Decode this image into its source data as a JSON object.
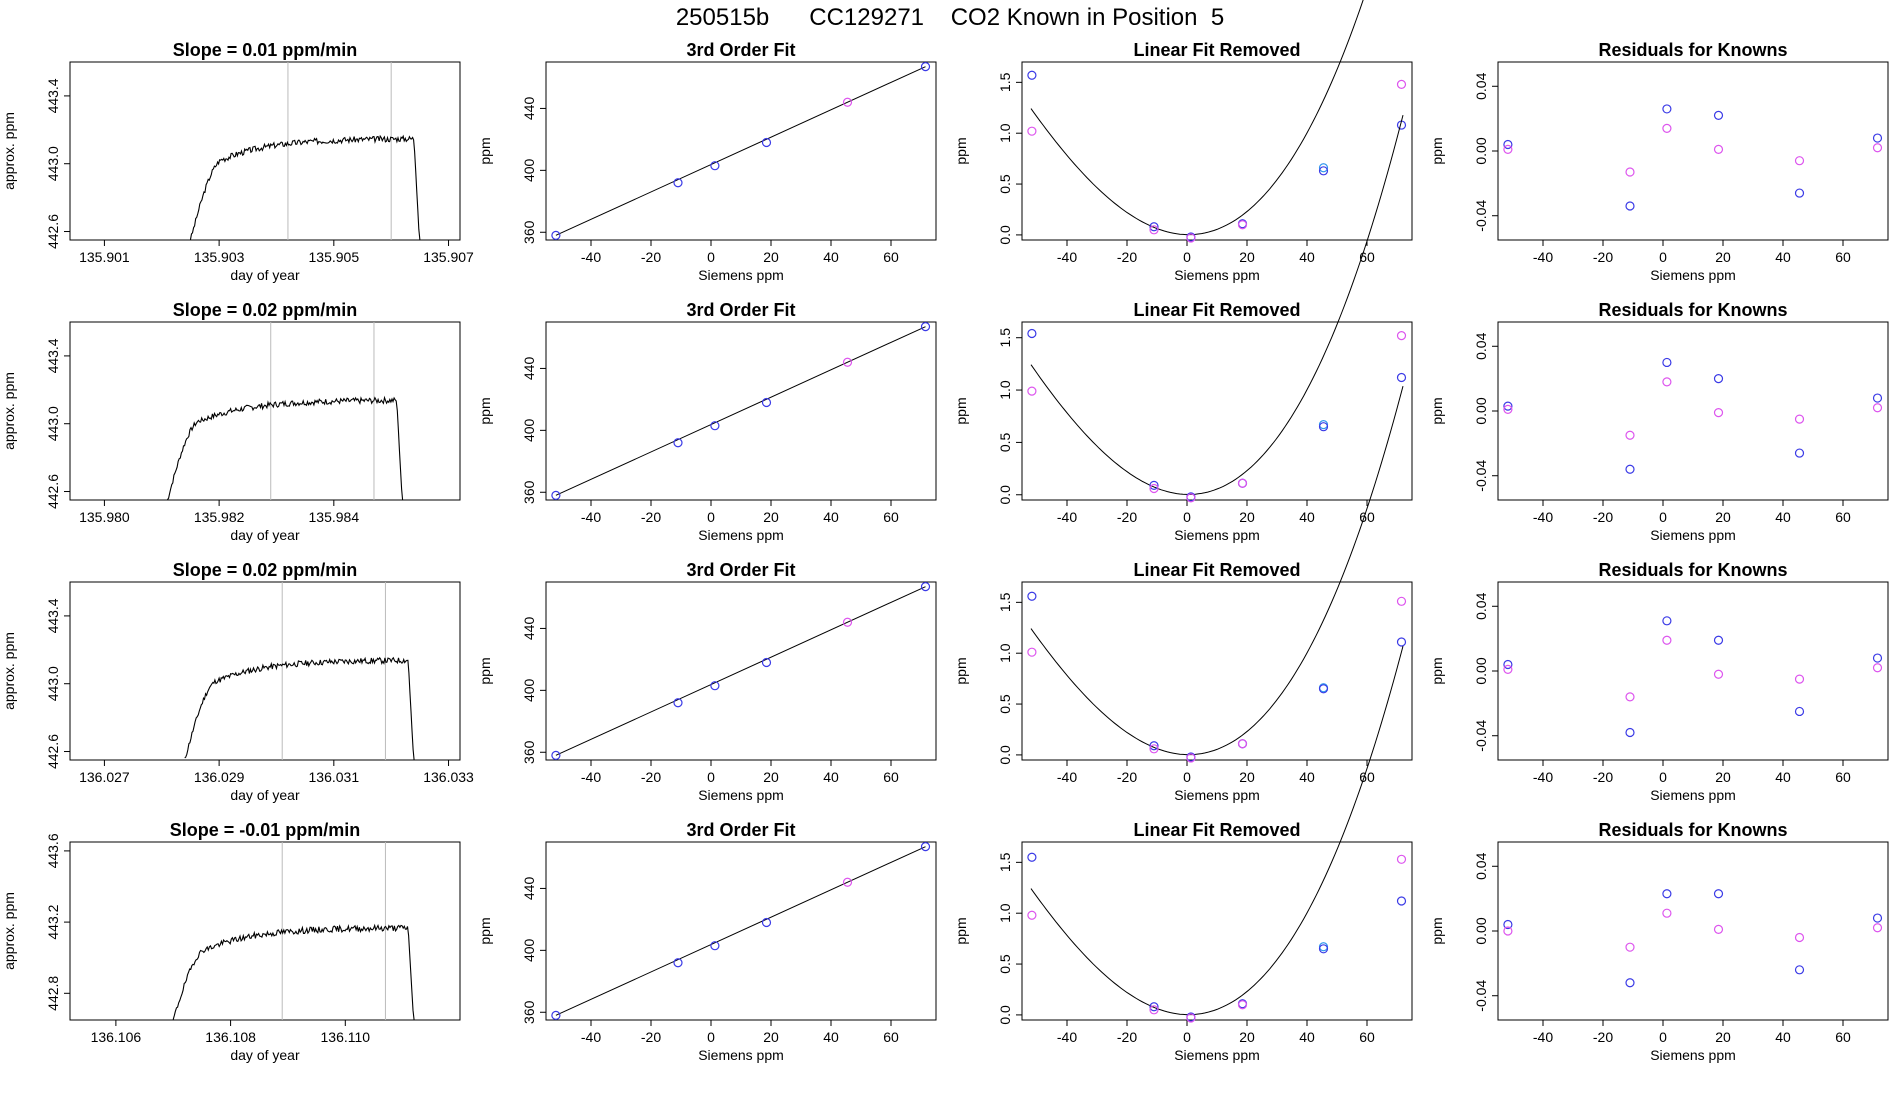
{
  "page": {
    "title": "250515b      CC129271    CO2 Known in Position  5"
  },
  "colors": {
    "blue": "#3a3ae6",
    "violet": "#dd55ee",
    "lightblue": "#3399ee",
    "red": "#ee4444",
    "marker_line": "#bbbbbb",
    "curve": "#000000"
  },
  "chart_data": [
    {
      "type": "line",
      "panel": "row1-timeseries",
      "title": "Slope =  0.01  ppm/min",
      "xlabel": "day of year",
      "ylabel": "approx. ppm",
      "xlim": [
        135.9004,
        135.9072
      ],
      "ylim": [
        442.55,
        443.6
      ],
      "xticks": [
        135.901,
        135.903,
        135.905,
        135.907
      ],
      "xtick_labels": [
        "135.901",
        "135.903",
        "135.905",
        "135.907"
      ],
      "yticks": [
        442.6,
        443.0,
        443.4
      ],
      "ytick_labels": [
        "442.6",
        "443.0",
        "443.4"
      ],
      "markers": [
        135.9042,
        135.906
      ],
      "rise": [
        135.9025,
        135.9031
      ],
      "fall": [
        135.9064,
        135.9065
      ],
      "plateau": 443.13,
      "seed": 3,
      "grid": false
    },
    {
      "type": "line",
      "panel": "row1-fit",
      "title": "3rd Order Fit",
      "xlabel": "Siemens ppm",
      "ylabel": "ppm",
      "xlim": [
        -55,
        75
      ],
      "ylim": [
        355,
        470
      ],
      "xticks": [
        -40,
        -20,
        0,
        20,
        40,
        60
      ],
      "xtick_labels": [
        "-40",
        "-20",
        "0",
        "20",
        "40",
        "60"
      ],
      "yticks": [
        360,
        400,
        440
      ],
      "ytick_labels": [
        "360",
        "400",
        "440"
      ],
      "points": {
        "x": [
          -51.7,
          -11.0,
          1.3,
          18.5,
          45.5,
          71.5
        ],
        "y": [
          358,
          392,
          403,
          418,
          444,
          467
        ],
        "colors": [
          "blue",
          "blue",
          "blue",
          "blue",
          "violet",
          "blue"
        ]
      },
      "curve": [
        [
          -51.7,
          358
        ],
        [
          71.5,
          467
        ]
      ],
      "grid": false
    },
    {
      "type": "scatter",
      "panel": "row1-linfit",
      "title": "Linear Fit Removed",
      "xlabel": "Siemens ppm",
      "ylabel": "ppm",
      "xlim": [
        -55,
        75
      ],
      "ylim": [
        -0.05,
        1.7
      ],
      "xticks": [
        -40,
        -20,
        0,
        20,
        40,
        60
      ],
      "xtick_labels": [
        "-40",
        "-20",
        "0",
        "20",
        "40",
        "60"
      ],
      "yticks": [
        0.0,
        0.5,
        1.0,
        1.5
      ],
      "ytick_labels": [
        "0.0",
        "0.5",
        "1.0",
        "1.5"
      ],
      "points": {
        "x": [
          -51.7,
          -51.7,
          -11.0,
          -11.0,
          1.3,
          1.3,
          18.5,
          18.5,
          45.5,
          45.5,
          71.5,
          71.5
        ],
        "y": [
          1.57,
          1.02,
          0.08,
          0.05,
          -0.02,
          -0.03,
          0.11,
          0.1,
          0.66,
          0.63,
          1.08,
          1.48
        ],
        "colors": [
          "blue",
          "violet",
          "blue",
          "violet",
          "blue",
          "violet",
          "blue",
          "violet",
          "lightblue",
          "blue",
          "blue",
          "violet"
        ]
      },
      "poly": [
        0.0029,
        -0.0006,
        0.000556,
        2.1e-06
      ],
      "grid": false
    },
    {
      "type": "scatter",
      "panel": "row1-resid",
      "title": "Residuals for Knowns",
      "xlabel": "Siemens ppm",
      "ylabel": "ppm",
      "xlim": [
        -55,
        75
      ],
      "ylim": [
        -0.055,
        0.055
      ],
      "xticks": [
        -40,
        -20,
        0,
        20,
        40,
        60
      ],
      "xtick_labels": [
        "-40",
        "-20",
        "0",
        "20",
        "40",
        "60"
      ],
      "yticks": [
        -0.04,
        0.0,
        0.04
      ],
      "ytick_labels": [
        "-0.04",
        "0.00",
        "0.04"
      ],
      "points": {
        "x": [
          -51.7,
          -51.7,
          -11.0,
          -11.0,
          1.3,
          1.3,
          18.5,
          18.5,
          45.5,
          45.5,
          71.5,
          71.5
        ],
        "y": [
          0.004,
          0.001,
          -0.034,
          -0.013,
          0.026,
          0.014,
          0.022,
          0.001,
          -0.026,
          -0.006,
          0.008,
          0.002
        ],
        "colors": [
          "blue",
          "violet",
          "blue",
          "violet",
          "blue",
          "violet",
          "blue",
          "violet",
          "blue",
          "violet",
          "blue",
          "violet"
        ]
      },
      "grid": false
    },
    {
      "type": "line",
      "panel": "row2-timeseries",
      "title": "Slope =  0.02  ppm/min",
      "xlabel": "day of year",
      "ylabel": "approx. ppm",
      "xlim": [
        135.9794,
        135.9862
      ],
      "ylim": [
        442.55,
        443.6
      ],
      "xticks": [
        135.98,
        135.982,
        135.984
      ],
      "xtick_labels": [
        "135.980",
        "135.982",
        "135.984"
      ],
      "yticks": [
        442.6,
        443.0,
        443.4
      ],
      "ytick_labels": [
        "442.6",
        "443.0",
        "443.4"
      ],
      "markers": [
        135.9829,
        135.9847
      ],
      "rise": [
        135.9811,
        135.9817
      ],
      "fall": [
        135.9851,
        135.9852
      ],
      "plateau": 443.12,
      "seed": 7,
      "grid": false
    },
    {
      "type": "line",
      "panel": "row2-fit",
      "title": "3rd Order Fit",
      "xlabel": "Siemens ppm",
      "ylabel": "ppm",
      "xlim": [
        -55,
        75
      ],
      "ylim": [
        355,
        470
      ],
      "xticks": [
        -40,
        -20,
        0,
        20,
        40,
        60
      ],
      "xtick_labels": [
        "-40",
        "-20",
        "0",
        "20",
        "40",
        "60"
      ],
      "yticks": [
        360,
        400,
        440
      ],
      "ytick_labels": [
        "360",
        "400",
        "440"
      ],
      "points": {
        "x": [
          -51.7,
          -11.0,
          1.3,
          18.5,
          45.5,
          71.5
        ],
        "y": [
          358,
          392,
          403,
          418,
          444,
          467
        ],
        "colors": [
          "blue",
          "blue",
          "blue",
          "blue",
          "violet",
          "blue"
        ]
      },
      "curve": [
        [
          -51.7,
          358
        ],
        [
          71.5,
          467
        ]
      ],
      "grid": false
    },
    {
      "type": "scatter",
      "panel": "row2-linfit",
      "title": "Linear Fit Removed",
      "xlabel": "Siemens ppm",
      "ylabel": "ppm",
      "xlim": [
        -55,
        75
      ],
      "ylim": [
        -0.05,
        1.65
      ],
      "xticks": [
        -40,
        -20,
        0,
        20,
        40,
        60
      ],
      "xtick_labels": [
        "-40",
        "-20",
        "0",
        "20",
        "40",
        "60"
      ],
      "yticks": [
        0.0,
        0.5,
        1.0,
        1.5
      ],
      "ytick_labels": [
        "0.0",
        "0.5",
        "1.0",
        "1.5"
      ],
      "points": {
        "x": [
          -51.7,
          -51.7,
          -11.0,
          -11.0,
          1.3,
          1.3,
          18.5,
          18.5,
          45.5,
          45.5,
          71.5,
          71.5
        ],
        "y": [
          1.54,
          0.99,
          0.09,
          0.06,
          -0.02,
          -0.03,
          0.11,
          0.11,
          0.67,
          0.65,
          1.12,
          1.52
        ],
        "colors": [
          "blue",
          "violet",
          "blue",
          "violet",
          "blue",
          "violet",
          "blue",
          "violet",
          "lightblue",
          "blue",
          "blue",
          "violet"
        ]
      },
      "poly": [
        0.0029,
        -0.0006,
        0.000556,
        2.1e-06
      ],
      "grid": false
    },
    {
      "type": "scatter",
      "panel": "row2-resid",
      "title": "Residuals for Knowns",
      "xlabel": "Siemens ppm",
      "ylabel": "ppm",
      "xlim": [
        -55,
        75
      ],
      "ylim": [
        -0.055,
        0.055
      ],
      "xticks": [
        -40,
        -20,
        0,
        20,
        40,
        60
      ],
      "xtick_labels": [
        "-40",
        "-20",
        "0",
        "20",
        "40",
        "60"
      ],
      "yticks": [
        -0.04,
        0.0,
        0.04
      ],
      "ytick_labels": [
        "-0.04",
        "0.00",
        "0.04"
      ],
      "points": {
        "x": [
          -51.7,
          -51.7,
          -11.0,
          -11.0,
          1.3,
          1.3,
          18.5,
          18.5,
          45.5,
          45.5,
          71.5,
          71.5
        ],
        "y": [
          0.003,
          0.001,
          -0.036,
          -0.015,
          0.03,
          0.018,
          0.02,
          -0.001,
          -0.026,
          -0.005,
          0.008,
          0.002
        ],
        "colors": [
          "blue",
          "violet",
          "blue",
          "violet",
          "blue",
          "violet",
          "blue",
          "violet",
          "blue",
          "violet",
          "blue",
          "violet"
        ]
      },
      "grid": false
    },
    {
      "type": "line",
      "panel": "row3-timeseries",
      "title": "Slope =  0.02  ppm/min",
      "xlabel": "day of year",
      "ylabel": "approx. ppm",
      "xlim": [
        136.0264,
        136.0332
      ],
      "ylim": [
        442.55,
        443.6
      ],
      "xticks": [
        136.027,
        136.029,
        136.031,
        136.033
      ],
      "xtick_labels": [
        "136.027",
        "136.029",
        "136.031",
        "136.033"
      ],
      "yticks": [
        442.6,
        443.0,
        443.4
      ],
      "ytick_labels": [
        "442.6",
        "443.0",
        "443.4"
      ],
      "markers": [
        136.0301,
        136.0319
      ],
      "rise": [
        136.0284,
        136.029
      ],
      "fall": [
        136.0323,
        136.0324
      ],
      "plateau": 443.12,
      "seed": 11,
      "grid": false
    },
    {
      "type": "line",
      "panel": "row3-fit",
      "title": "3rd Order Fit",
      "xlabel": "Siemens ppm",
      "ylabel": "ppm",
      "xlim": [
        -55,
        75
      ],
      "ylim": [
        355,
        470
      ],
      "xticks": [
        -40,
        -20,
        0,
        20,
        40,
        60
      ],
      "xtick_labels": [
        "-40",
        "-20",
        "0",
        "20",
        "40",
        "60"
      ],
      "yticks": [
        360,
        400,
        440
      ],
      "ytick_labels": [
        "360",
        "400",
        "440"
      ],
      "points": {
        "x": [
          -51.7,
          -11.0,
          1.3,
          18.5,
          45.5,
          71.5
        ],
        "y": [
          358,
          392,
          403,
          418,
          444,
          467
        ],
        "colors": [
          "blue",
          "blue",
          "blue",
          "blue",
          "violet",
          "blue"
        ]
      },
      "curve": [
        [
          -51.7,
          358
        ],
        [
          71.5,
          467
        ]
      ],
      "grid": false
    },
    {
      "type": "scatter",
      "panel": "row3-linfit",
      "title": "Linear Fit Removed",
      "xlabel": "Siemens ppm",
      "ylabel": "ppm",
      "xlim": [
        -55,
        75
      ],
      "ylim": [
        -0.05,
        1.7
      ],
      "xticks": [
        -40,
        -20,
        0,
        20,
        40,
        60
      ],
      "xtick_labels": [
        "-40",
        "-20",
        "0",
        "20",
        "40",
        "60"
      ],
      "yticks": [
        0.0,
        0.5,
        1.0,
        1.5
      ],
      "ytick_labels": [
        "0.0",
        "0.5",
        "1.0",
        "1.5"
      ],
      "points": {
        "x": [
          -51.7,
          -51.7,
          -11.0,
          -11.0,
          1.3,
          1.3,
          18.5,
          18.5,
          45.5,
          45.5,
          71.5,
          71.5
        ],
        "y": [
          1.56,
          1.01,
          0.09,
          0.06,
          -0.02,
          -0.03,
          0.11,
          0.11,
          0.66,
          0.65,
          1.11,
          1.51
        ],
        "colors": [
          "blue",
          "violet",
          "blue",
          "violet",
          "blue",
          "violet",
          "blue",
          "violet",
          "lightblue",
          "blue",
          "blue",
          "violet"
        ]
      },
      "poly": [
        0.0029,
        -0.0006,
        0.000556,
        2.1e-06
      ],
      "grid": false
    },
    {
      "type": "scatter",
      "panel": "row3-resid",
      "title": "Residuals for Knowns",
      "xlabel": "Siemens ppm",
      "ylabel": "ppm",
      "xlim": [
        -55,
        75
      ],
      "ylim": [
        -0.055,
        0.055
      ],
      "xticks": [
        -40,
        -20,
        0,
        20,
        40,
        60
      ],
      "xtick_labels": [
        "-40",
        "-20",
        "0",
        "20",
        "40",
        "60"
      ],
      "yticks": [
        -0.04,
        0.0,
        0.04
      ],
      "ytick_labels": [
        "-0.04",
        "0.00",
        "0.04"
      ],
      "points": {
        "x": [
          -51.7,
          -51.7,
          -11.0,
          -11.0,
          1.3,
          1.3,
          18.5,
          18.5,
          45.5,
          45.5,
          71.5,
          71.5
        ],
        "y": [
          0.004,
          0.001,
          -0.038,
          -0.016,
          0.031,
          0.019,
          0.019,
          -0.002,
          -0.025,
          -0.005,
          0.008,
          0.002
        ],
        "colors": [
          "blue",
          "violet",
          "blue",
          "violet",
          "blue",
          "violet",
          "blue",
          "violet",
          "blue",
          "violet",
          "blue",
          "violet"
        ]
      },
      "grid": false
    },
    {
      "type": "line",
      "panel": "row4-timeseries",
      "title": "Slope =  -0.01  ppm/min",
      "xlabel": "day of year",
      "ylabel": "approx. ppm",
      "xlim": [
        136.1052,
        136.112
      ],
      "ylim": [
        442.65,
        443.65
      ],
      "xticks": [
        136.106,
        136.108,
        136.11
      ],
      "xtick_labels": [
        "136.106",
        "136.108",
        "136.110"
      ],
      "yticks": [
        442.8,
        443.2,
        443.6
      ],
      "ytick_labels": [
        "442.8",
        "443.2",
        "443.6"
      ],
      "markers": [
        136.1089,
        136.1107
      ],
      "rise": [
        136.107,
        136.1076
      ],
      "fall": [
        136.1111,
        136.1112
      ],
      "plateau": 443.15,
      "seed": 19,
      "grid": false
    },
    {
      "type": "line",
      "panel": "row4-fit",
      "title": "3rd Order Fit",
      "xlabel": "Siemens ppm",
      "ylabel": "ppm",
      "xlim": [
        -55,
        75
      ],
      "ylim": [
        355,
        470
      ],
      "xticks": [
        -40,
        -20,
        0,
        20,
        40,
        60
      ],
      "xtick_labels": [
        "-40",
        "-20",
        "0",
        "20",
        "40",
        "60"
      ],
      "yticks": [
        360,
        400,
        440
      ],
      "ytick_labels": [
        "360",
        "400",
        "440"
      ],
      "points": {
        "x": [
          -51.7,
          -11.0,
          1.3,
          18.5,
          45.5,
          71.5
        ],
        "y": [
          358,
          392,
          403,
          418,
          444,
          467
        ],
        "colors": [
          "blue",
          "blue",
          "blue",
          "blue",
          "violet",
          "blue"
        ]
      },
      "curve": [
        [
          -51.7,
          358
        ],
        [
          71.5,
          467
        ]
      ],
      "grid": false
    },
    {
      "type": "scatter",
      "panel": "row4-linfit",
      "title": "Linear Fit Removed",
      "xlabel": "Siemens ppm",
      "ylabel": "ppm",
      "xlim": [
        -55,
        75
      ],
      "ylim": [
        -0.05,
        1.7
      ],
      "xticks": [
        -40,
        -20,
        0,
        20,
        40,
        60
      ],
      "xtick_labels": [
        "-40",
        "-20",
        "0",
        "20",
        "40",
        "60"
      ],
      "yticks": [
        0.0,
        0.5,
        1.0,
        1.5
      ],
      "ytick_labels": [
        "0.0",
        "0.5",
        "1.0",
        "1.5"
      ],
      "points": {
        "x": [
          -51.7,
          -51.7,
          -11.0,
          -11.0,
          1.3,
          1.3,
          18.5,
          18.5,
          45.5,
          45.5,
          71.5,
          71.5
        ],
        "y": [
          1.55,
          0.98,
          0.08,
          0.05,
          -0.02,
          -0.03,
          0.11,
          0.1,
          0.67,
          0.65,
          1.12,
          1.53
        ],
        "colors": [
          "blue",
          "violet",
          "blue",
          "violet",
          "blue",
          "violet",
          "blue",
          "violet",
          "lightblue",
          "blue",
          "blue",
          "violet"
        ]
      },
      "poly": [
        0.0029,
        -0.0006,
        0.000556,
        2.1e-06
      ],
      "grid": false
    },
    {
      "type": "scatter",
      "panel": "row4-resid",
      "title": "Residuals for Knowns",
      "xlabel": "Siemens ppm",
      "ylabel": "ppm",
      "xlim": [
        -55,
        75
      ],
      "ylim": [
        -0.055,
        0.055
      ],
      "xticks": [
        -40,
        -20,
        0,
        20,
        40,
        60
      ],
      "xtick_labels": [
        "-40",
        "-20",
        "0",
        "20",
        "40",
        "60"
      ],
      "yticks": [
        -0.04,
        0.0,
        0.04
      ],
      "ytick_labels": [
        "-0.04",
        "0.00",
        "0.04"
      ],
      "points": {
        "x": [
          -51.7,
          -51.7,
          -11.0,
          -11.0,
          1.3,
          1.3,
          18.5,
          18.5,
          45.5,
          45.5,
          71.5,
          71.5
        ],
        "y": [
          0.004,
          0.0,
          -0.032,
          -0.01,
          0.023,
          0.011,
          0.023,
          0.001,
          -0.024,
          -0.004,
          0.008,
          0.002
        ],
        "colors": [
          "blue",
          "violet",
          "blue",
          "violet",
          "blue",
          "violet",
          "blue",
          "violet",
          "blue",
          "violet",
          "blue",
          "violet"
        ]
      },
      "grid": false
    }
  ]
}
